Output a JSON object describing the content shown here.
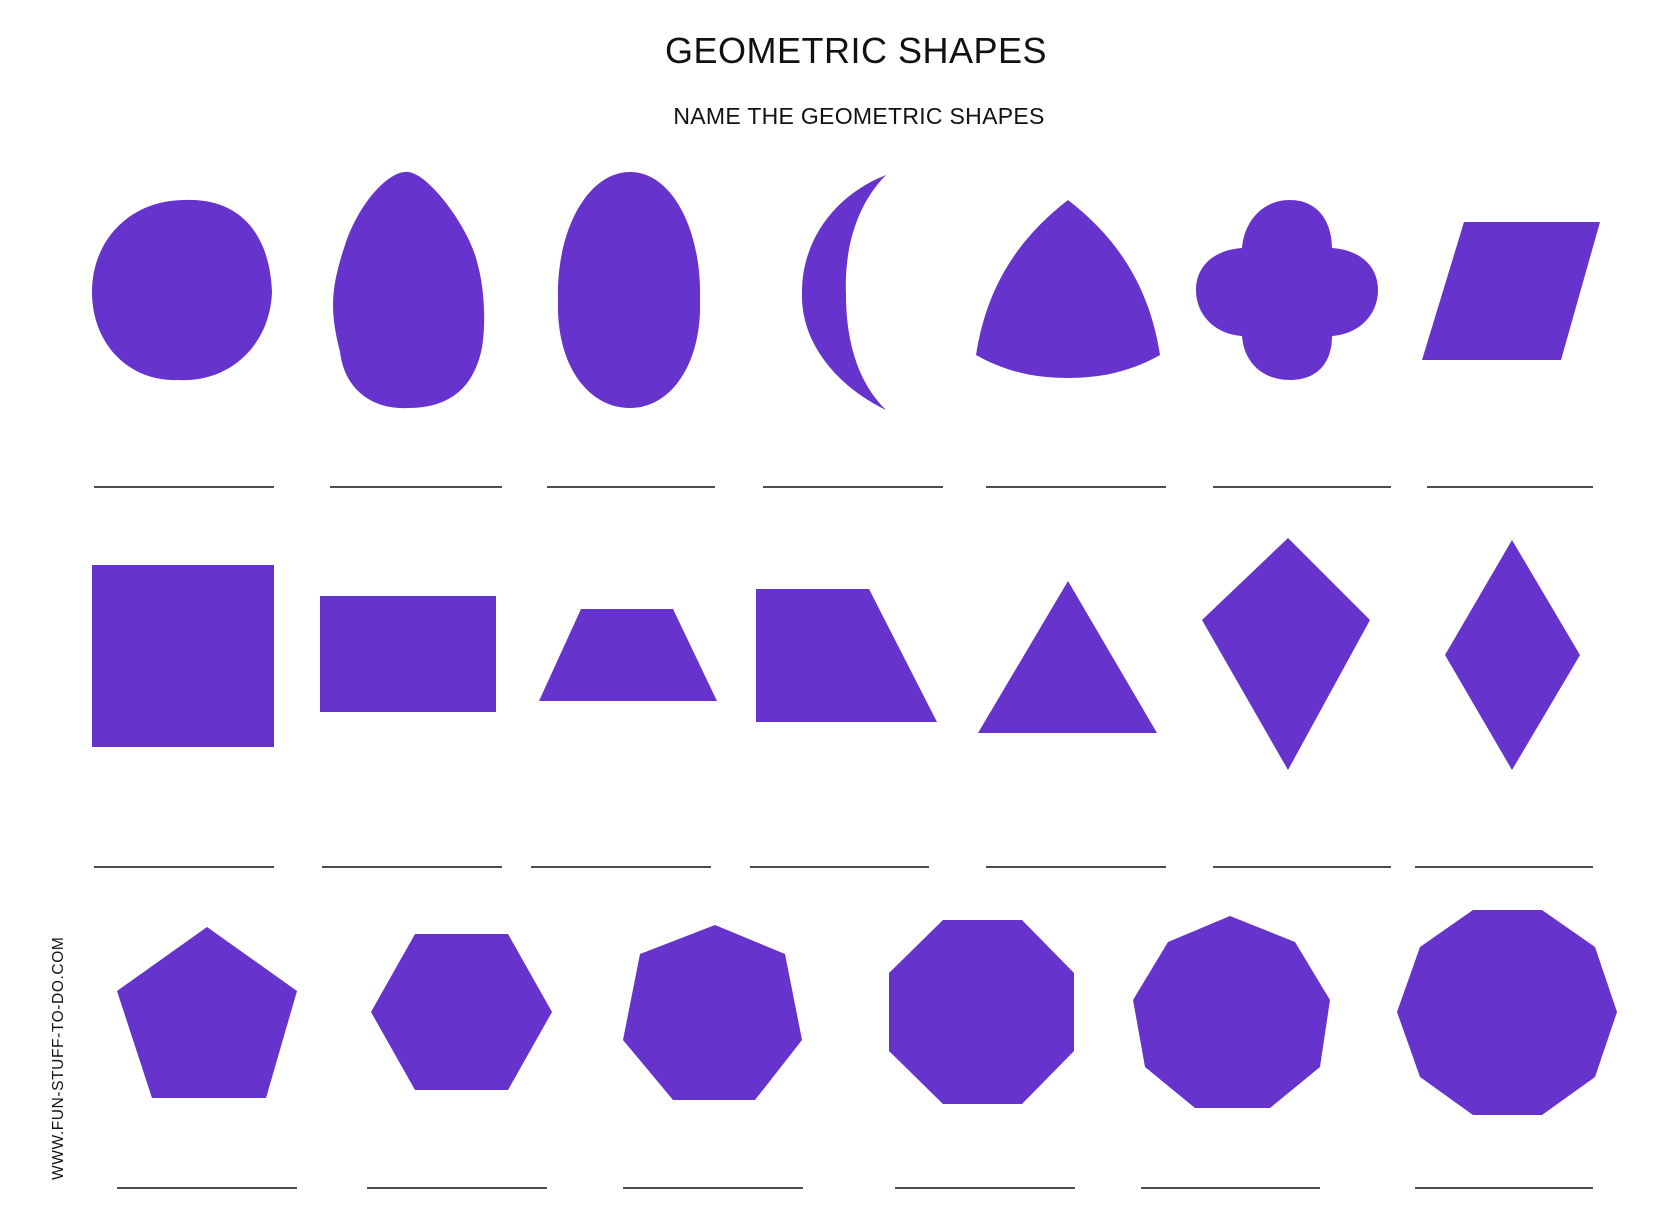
{
  "worksheet": {
    "title": "GEOMETRIC SHAPES",
    "instructions": "NAME THE GEOMETRIC SHAPES",
    "website": "WWW.FUN-STUFF-TO-DO.COM",
    "shape_color": "#6633cc",
    "rows": [
      {
        "shapes": [
          "circle-icon",
          "egg-icon",
          "oval-icon",
          "crescent-icon",
          "reuleaux-triangle-icon",
          "quatrefoil-icon",
          "parallelogram-icon"
        ]
      },
      {
        "shapes": [
          "square-icon",
          "rectangle-icon",
          "trapezoid-icon",
          "right-trapezoid-icon",
          "triangle-icon",
          "kite-icon",
          "rhombus-icon"
        ]
      },
      {
        "shapes": [
          "pentagon-icon",
          "hexagon-icon",
          "heptagon-icon",
          "octagon-icon",
          "nonagon-icon",
          "decagon-icon"
        ]
      }
    ]
  }
}
